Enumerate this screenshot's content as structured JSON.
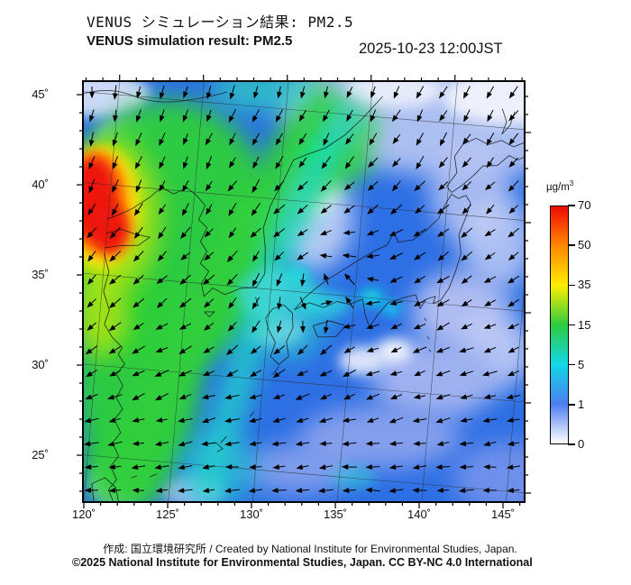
{
  "header": {
    "title_jp": "VENUS シミュレーション結果: PM2.5",
    "title_en": "VENUS simulation result: PM2.5",
    "timestamp": "2025-10-23 12:00JST"
  },
  "map": {
    "lat_labels": [
      "45˚",
      "40˚",
      "35˚",
      "30˚",
      "25˚"
    ],
    "lon_labels": [
      "120˚",
      "125˚",
      "130˚",
      "135˚",
      "140˚",
      "145˚"
    ],
    "lat_range": [
      25,
      45
    ],
    "lon_range": [
      120,
      145
    ],
    "grid_interval_deg": 5,
    "tick_interval_deg": 1
  },
  "colorbar": {
    "unit_prefix": "µg/m",
    "unit_sup": "3",
    "ticks": [
      "70",
      "50",
      "35",
      "15",
      "5",
      "1",
      "0"
    ],
    "stops_bottom_to_top": [
      "#ffffff",
      "#4d7df0",
      "#12d8e8",
      "#2ecc3e",
      "#ffee00",
      "#ff8800",
      "#f00a00"
    ]
  },
  "wind": {
    "arrow_color": "#000000",
    "pattern_note": "northerly flow over continent turning westerly over southern ocean"
  },
  "field_notes": {
    "high_pm25_region": "red maximum near 120E 38-40N",
    "moderate_region": "green band over eastern China and Korea",
    "low_region": "blue/white over Japan and Pacific"
  },
  "footer": {
    "credit": "作成: 国立環境研究所 / Created by National Institute for Environmental Studies, Japan.",
    "license": "©2025 National Institute for Environmental Studies, Japan. CC BY-NC 4.0 International"
  }
}
